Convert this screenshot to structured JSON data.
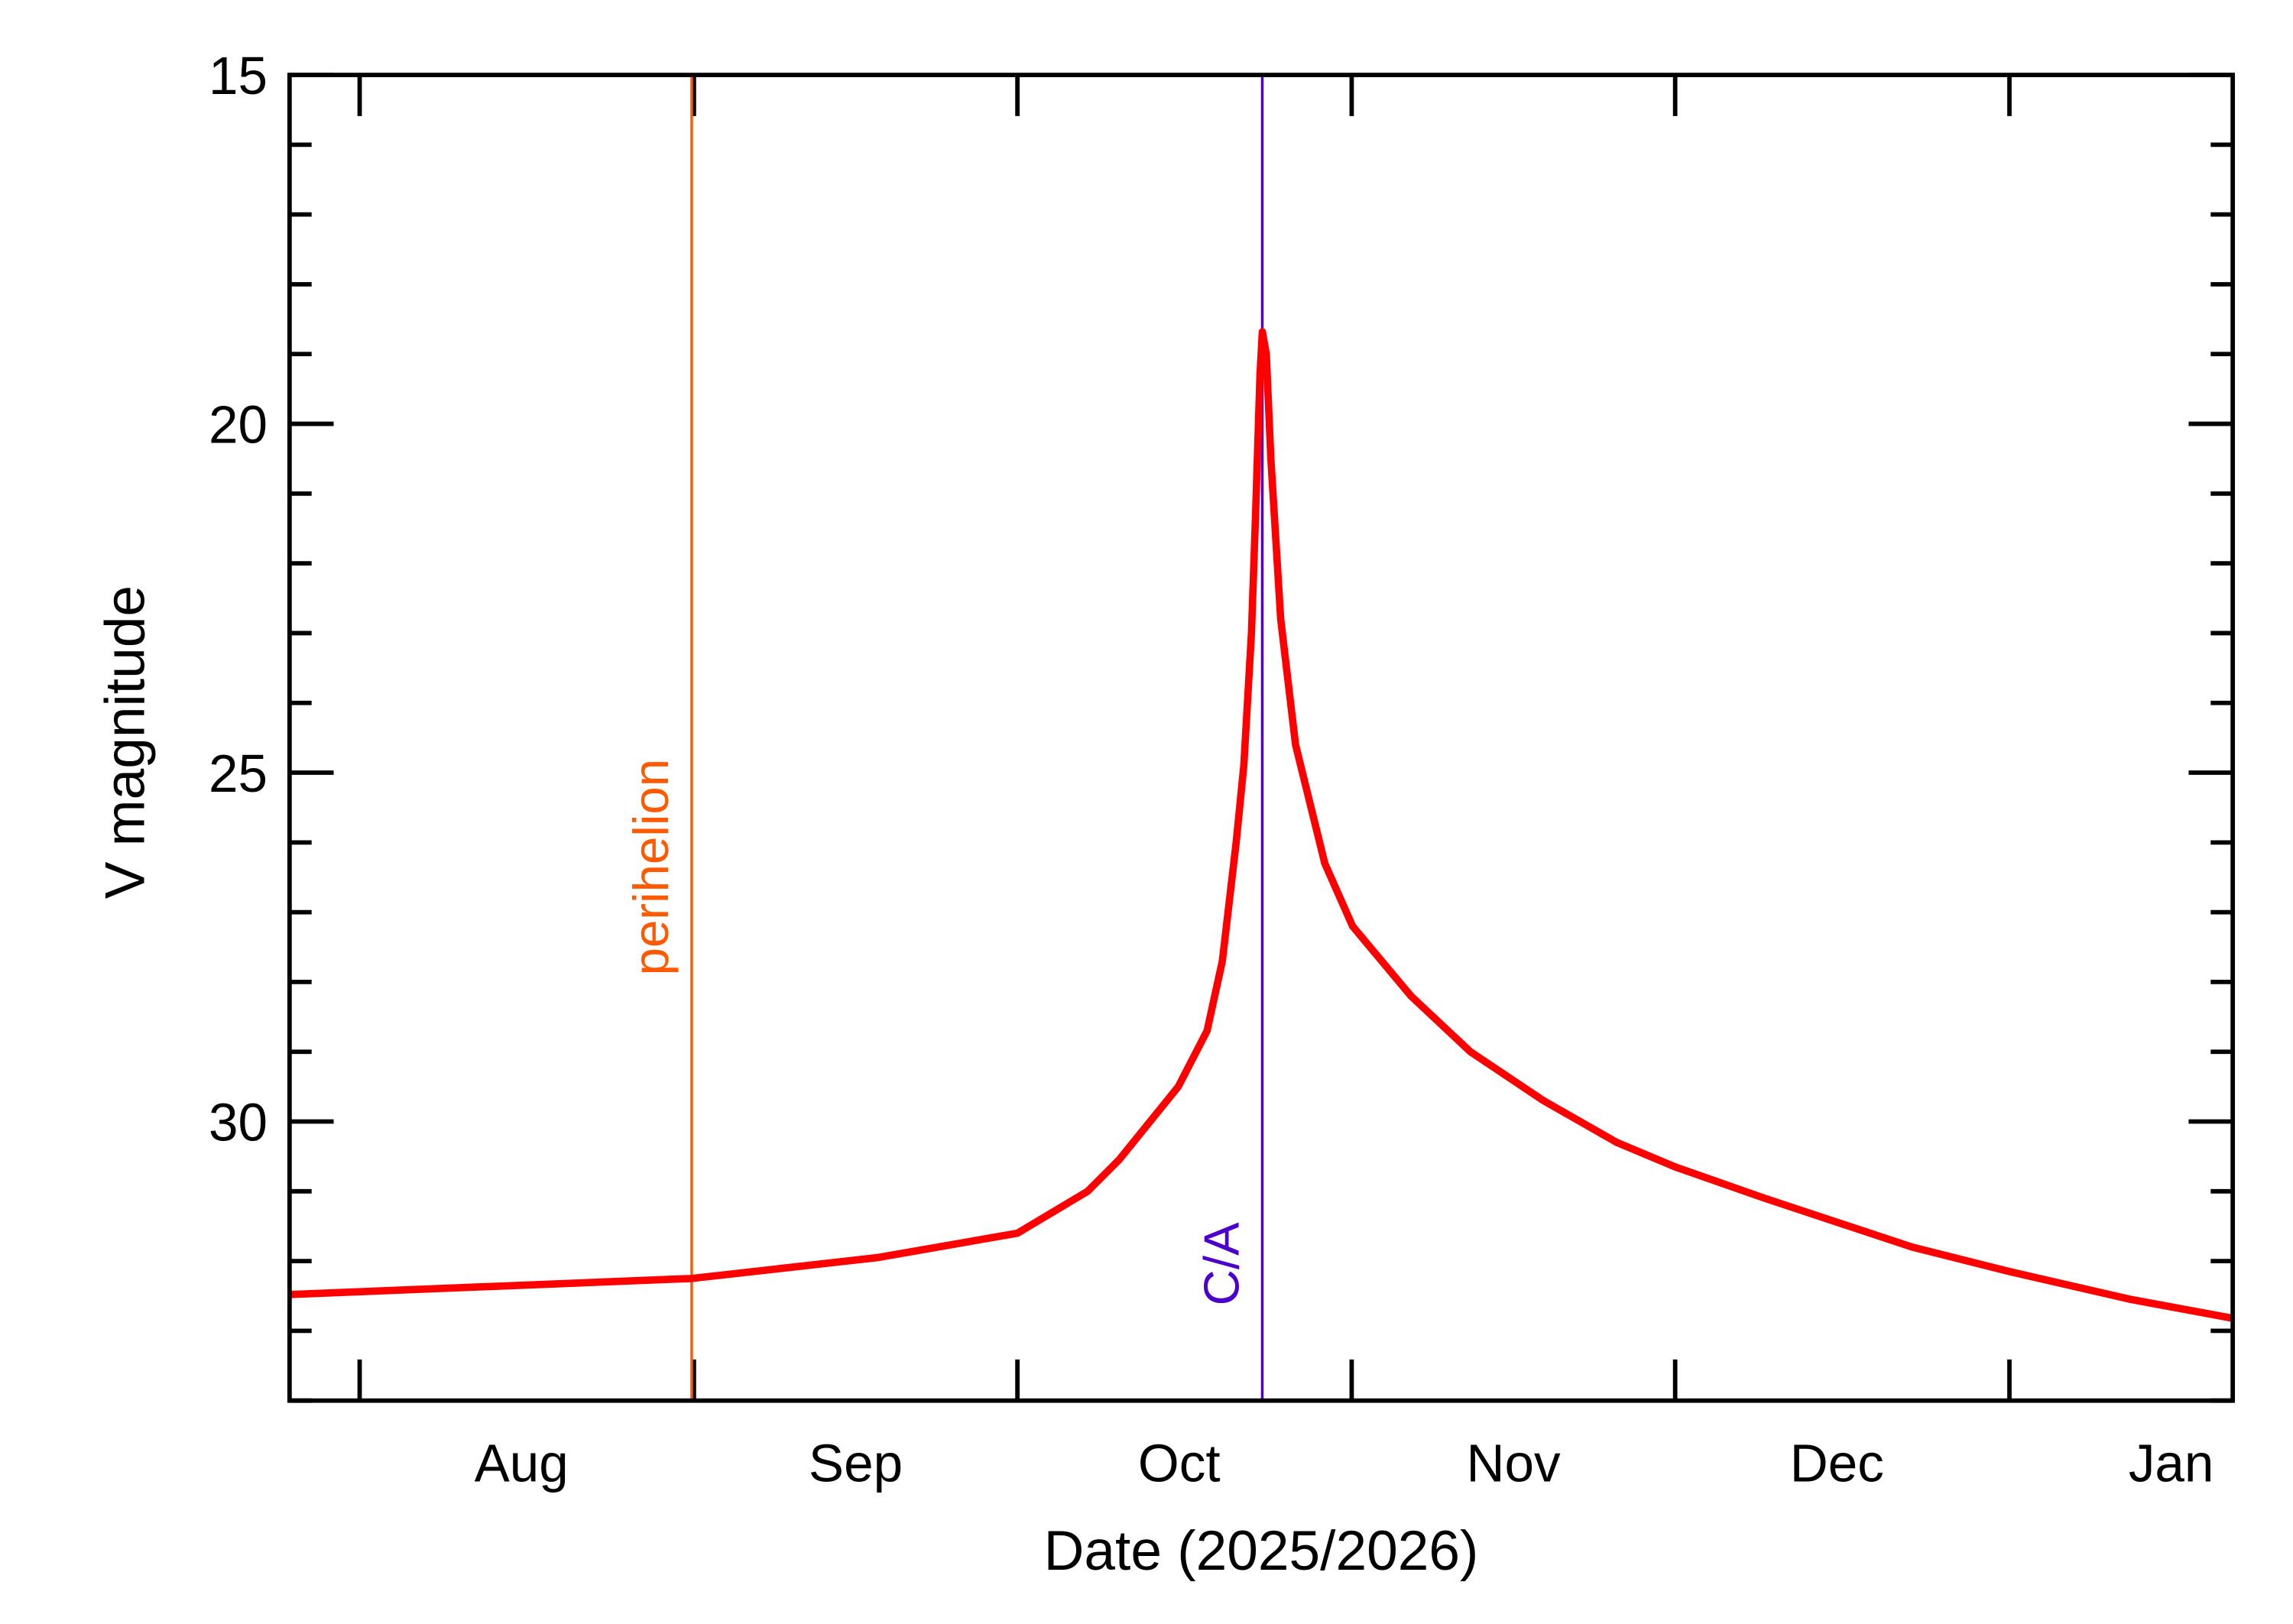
{
  "chart_data": {
    "type": "line",
    "title": "",
    "xlabel": "Date (2025/2026)",
    "ylabel": "V magnitude",
    "x_axis_type": "date",
    "xlim": [
      "2025-07-25T12:00",
      "2026-01-21T17:00"
    ],
    "ylim": [
      34,
      15
    ],
    "y_inverted": true,
    "grid": false,
    "y_major_ticks": [
      15,
      20,
      25,
      30
    ],
    "y_tick_labels": [
      "15",
      "20",
      "25",
      "30"
    ],
    "y_minor_step": 1,
    "x_major_ticks": [
      "2025-08-01",
      "2025-09-01",
      "2025-10-01",
      "2025-11-01",
      "2025-12-01",
      "2026-01-01"
    ],
    "x_month_labels": [
      {
        "label": "Aug",
        "date": "2025-08-16"
      },
      {
        "label": "Sep",
        "date": "2025-09-16"
      },
      {
        "label": "Oct",
        "date": "2025-10-16"
      },
      {
        "label": "Nov",
        "date": "2025-11-16"
      },
      {
        "label": "Dec",
        "date": "2025-12-16"
      },
      {
        "label": "Jan",
        "date": "2026-01-16"
      }
    ],
    "series": [
      {
        "color": "#ff0000",
        "x": [
          "2025-07-25T12:00",
          "2025-08-31T19:00",
          "2025-09-18T00:00",
          "2025-10-01T00:00",
          "2025-10-07T12:00",
          "2025-10-10T10:00",
          "2025-10-15T22:00",
          "2025-10-18T14:00",
          "2025-10-20T00:00",
          "2025-10-21T07:00",
          "2025-10-22T00:00",
          "2025-10-22T17:00",
          "2025-10-23T02:00",
          "2025-10-23T12:00",
          "2025-10-23T17:00",
          "2025-10-24T02:00",
          "2025-10-24T12:00",
          "2025-10-25T10:00",
          "2025-10-26T19:00",
          "2025-10-29T12:00",
          "2025-11-01T02:00",
          "2025-11-06T12:00",
          "2025-11-12T00:00",
          "2025-11-18T19:00",
          "2025-11-25T14:00",
          "2025-12-01T00:00",
          "2025-12-09T07:00",
          "2025-12-23T00:00",
          "2026-01-01T00:00",
          "2026-01-12T07:00",
          "2026-01-21T17:00"
        ],
        "y": [
          32.48,
          32.25,
          31.95,
          31.6,
          31.0,
          30.55,
          29.5,
          28.7,
          27.7,
          26.0,
          24.9,
          23.0,
          21.3,
          19.3,
          18.68,
          19.0,
          20.5,
          22.8,
          24.6,
          26.3,
          27.2,
          28.2,
          29.0,
          29.7,
          30.3,
          30.65,
          31.1,
          31.8,
          32.15,
          32.55,
          32.82
        ]
      }
    ],
    "annotations": [
      {
        "label": "perihelion",
        "date": "2025-08-31T19:00",
        "type": "vertical-line",
        "color": "#ff5a00"
      },
      {
        "label": "C/A",
        "date": "2025-10-23T17:00",
        "type": "vertical-line",
        "color": "#4b00cc"
      }
    ]
  }
}
